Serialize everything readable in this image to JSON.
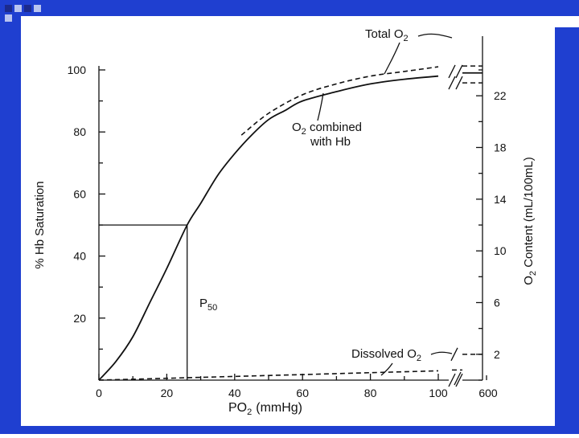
{
  "theme": {
    "frame_blue": "#1f3fd0",
    "square_dark": "#1c2a8c",
    "square_light": "#b9c4f0",
    "ink": "#111111"
  },
  "chart_data": {
    "type": "line",
    "title": "",
    "xlabel": "PO",
    "xlabel_sub": "2",
    "xlabel_unit": "(mmHg)",
    "ylabel": "% Hb Saturation",
    "y2label_pre": "O",
    "y2label_sub": "2",
    "y2label_post": " Content (mL/100mL)",
    "xlim": [
      0,
      110
    ],
    "ylim": [
      0,
      100
    ],
    "x_ticks": [
      0,
      20,
      40,
      60,
      80,
      100
    ],
    "x_tick_extra": "600",
    "y_ticks": [
      20,
      40,
      60,
      80,
      100
    ],
    "y2_ticks": [
      2,
      6,
      10,
      14,
      18,
      22
    ],
    "y2lim": [
      0,
      24
    ],
    "p50": {
      "label": "P",
      "sub": "50",
      "x": 26,
      "y": 50
    },
    "series": [
      {
        "name": "O2 combined with Hb",
        "style": "solid",
        "x": [
          0,
          5,
          10,
          15,
          20,
          26,
          30,
          35,
          40,
          45,
          50,
          55,
          60,
          70,
          80,
          90,
          100
        ],
        "y": [
          0,
          6,
          14,
          25,
          36,
          50,
          57,
          66,
          73,
          79,
          84,
          87,
          90,
          93,
          95.5,
          97,
          98
        ]
      },
      {
        "name": "Total O2",
        "style": "dashed",
        "x": [
          42,
          50,
          60,
          70,
          80,
          90,
          100
        ],
        "y": [
          79,
          86,
          92,
          95.5,
          98,
          99.5,
          101
        ]
      },
      {
        "name": "Dissolved O2",
        "style": "dashed",
        "x": [
          0,
          20,
          40,
          60,
          80,
          100
        ],
        "y": [
          0,
          0.6,
          1.2,
          1.8,
          2.4,
          3
        ]
      }
    ],
    "annotations": {
      "total_pre": "Total O",
      "total_sub": "2",
      "combined_line1_pre": "O",
      "combined_line1_sub": "2",
      "combined_line1_post": " combined",
      "combined_line2": "with Hb",
      "dissolved_pre": "Dissolved O",
      "dissolved_sub": "2"
    }
  }
}
